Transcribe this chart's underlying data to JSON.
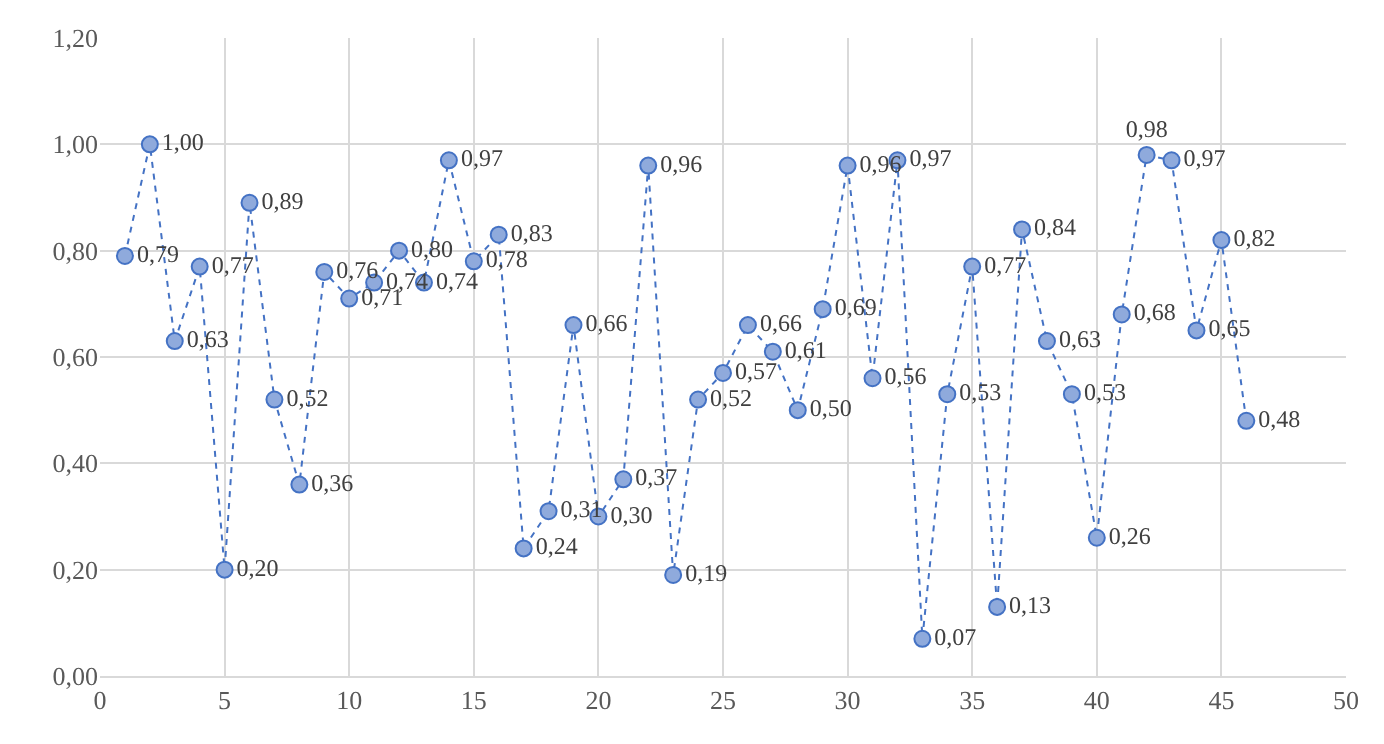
{
  "chart_data": {
    "type": "line",
    "x": [
      1,
      2,
      3,
      4,
      5,
      6,
      7,
      8,
      9,
      10,
      11,
      12,
      13,
      14,
      15,
      16,
      17,
      18,
      19,
      20,
      21,
      22,
      23,
      24,
      25,
      26,
      27,
      28,
      29,
      30,
      31,
      32,
      33,
      34,
      35,
      36,
      37,
      38,
      39,
      40,
      41,
      42,
      43,
      44,
      45,
      46
    ],
    "series": [
      {
        "color": "#4472c4",
        "values": [
          0.79,
          1.0,
          0.63,
          0.77,
          0.2,
          0.89,
          0.52,
          0.36,
          0.76,
          0.71,
          0.74,
          0.8,
          0.74,
          0.97,
          0.78,
          0.83,
          0.24,
          0.31,
          0.66,
          0.3,
          0.37,
          0.96,
          0.19,
          0.52,
          0.57,
          0.66,
          0.61,
          0.5,
          0.69,
          0.96,
          0.56,
          0.97,
          0.07,
          0.53,
          0.77,
          0.13,
          0.84,
          0.63,
          0.53,
          0.26,
          0.68,
          0.98,
          0.97,
          0.65,
          0.82,
          0.48
        ],
        "value_labels": [
          "0,79",
          "1,00",
          "0,63",
          "0,77",
          "0,20",
          "0,89",
          "0,52",
          "0,36",
          "0,76",
          "0,71",
          "0,74",
          "0,80",
          "0,74",
          "0,97",
          "0,78",
          "0,83",
          "0,24",
          "0,31",
          "0,66",
          "0,30",
          "0,37",
          "0,96",
          "0,19",
          "0,52",
          "0,57",
          "0,66",
          "0,61",
          "0,50",
          "0,69",
          "0,96",
          "0,56",
          "0,97",
          "0,07",
          "0,53",
          "0,77",
          "0,13",
          "0,84",
          "0,63",
          "0,53",
          "0,26",
          "0,68",
          "0,98",
          "0,97",
          "0,65",
          "0,82",
          "0,48"
        ]
      }
    ],
    "xlim": [
      0,
      50
    ],
    "xticks": [
      0,
      5,
      10,
      15,
      20,
      25,
      30,
      35,
      40,
      45,
      50
    ],
    "ylim": [
      0,
      1.2
    ],
    "yticks": [
      {
        "value": 0,
        "label": "0,00"
      },
      {
        "value": 0.2,
        "label": "0,20"
      },
      {
        "value": 0.4,
        "label": "0,40"
      },
      {
        "value": 0.6,
        "label": "0,60"
      },
      {
        "value": 0.8,
        "label": "0,80"
      },
      {
        "value": 1.0,
        "label": "1,00"
      },
      {
        "value": 1.2,
        "label": "1,20"
      }
    ],
    "grid": true,
    "marker": "circle",
    "line_style": "dotted"
  }
}
